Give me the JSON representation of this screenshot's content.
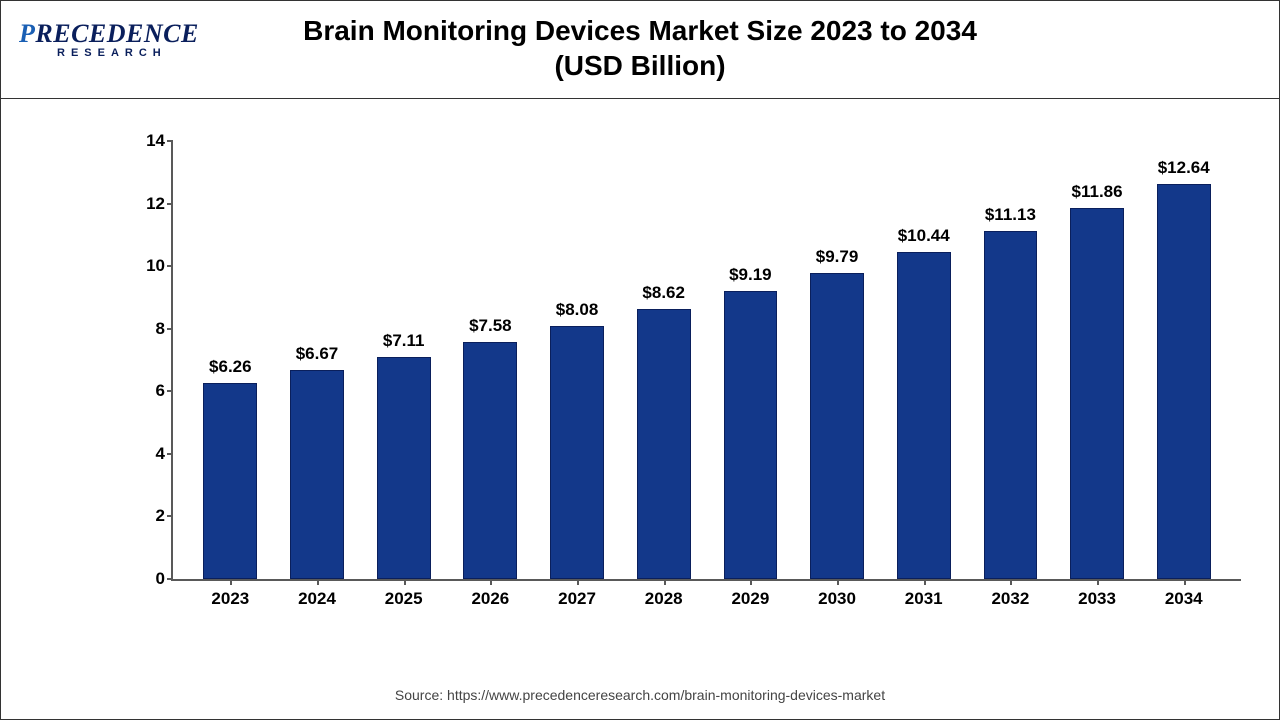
{
  "logo": {
    "brand_pre": "P",
    "brand_mid": "RECEDENCE",
    "brand_sub": "RESEARCH"
  },
  "chart": {
    "type": "bar",
    "title_line1": "Brain Monitoring Devices Market Size 2023 to 2034",
    "title_line2": "(USD Billion)",
    "categories": [
      "2023",
      "2024",
      "2025",
      "2026",
      "2027",
      "2028",
      "2029",
      "2030",
      "2031",
      "2032",
      "2033",
      "2034"
    ],
    "values": [
      6.26,
      6.67,
      7.11,
      7.58,
      8.08,
      8.62,
      9.19,
      9.79,
      10.44,
      11.13,
      11.86,
      12.64
    ],
    "value_labels": [
      "$6.26",
      "$6.67",
      "$7.11",
      "$7.58",
      "$8.08",
      "$8.62",
      "$9.19",
      "$9.79",
      "$10.44",
      "$11.13",
      "$11.86",
      "$12.64"
    ],
    "bar_color": "#13388a",
    "bar_border_color": "#0a1f5c",
    "background_color": "#ffffff",
    "axis_color": "#595959",
    "ylim": [
      0,
      14
    ],
    "ytick_step": 2,
    "yticks": [
      0,
      2,
      4,
      6,
      8,
      10,
      12,
      14
    ],
    "bar_width_ratio": 0.62,
    "title_fontsize": 28,
    "label_fontsize": 17,
    "axis_fontsize": 17
  },
  "source": "Source: https://www.precedenceresearch.com/brain-monitoring-devices-market"
}
